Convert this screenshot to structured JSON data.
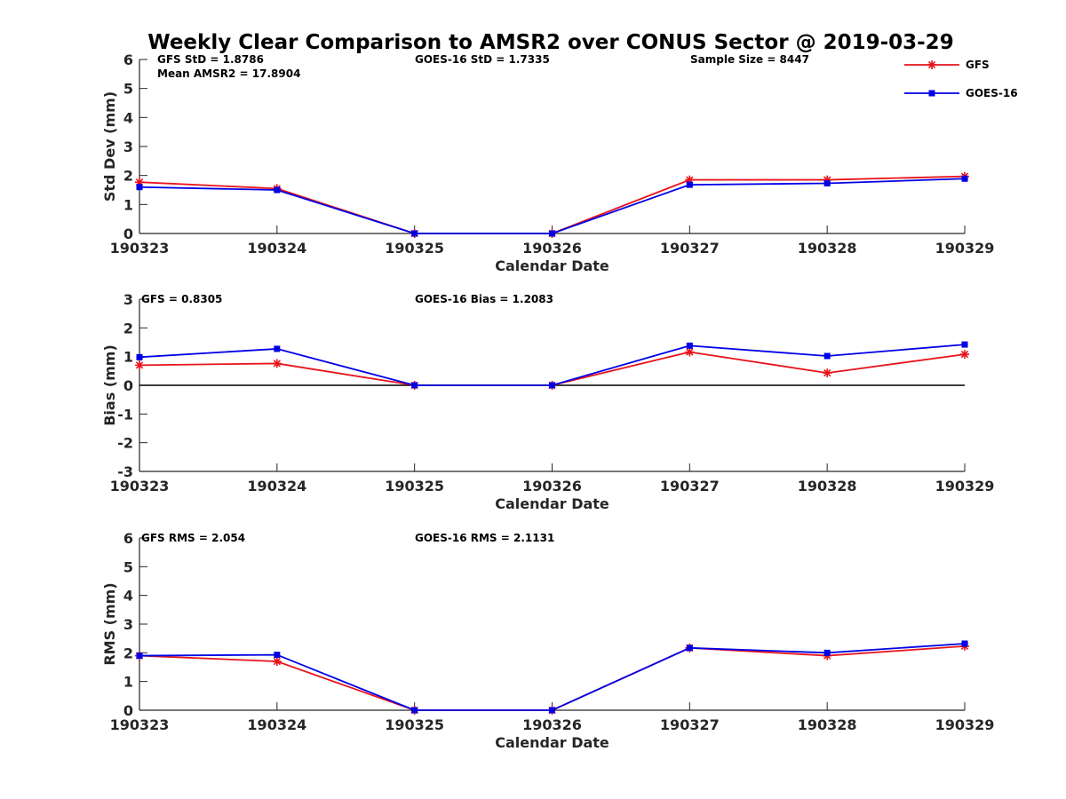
{
  "title": "Weekly Clear Comparison to AMSR2 over CONUS Sector @ 2019-03-29",
  "legend": {
    "items": [
      {
        "label": "GFS",
        "color": "#e8131b",
        "marker": "star"
      },
      {
        "label": "GOES-16",
        "color": "#0000e6",
        "marker": "square"
      }
    ]
  },
  "chart_data": [
    {
      "type": "line",
      "categories": [
        "190323",
        "190324",
        "190325",
        "190326",
        "190327",
        "190328",
        "190329"
      ],
      "xlabel": "Calendar Date",
      "ylabel": "Std Dev (mm)",
      "ylim": [
        0,
        6
      ],
      "yticks": [
        0,
        1,
        2,
        3,
        4,
        5,
        6
      ],
      "zero_line": false,
      "annotations": [
        "GFS StD = 1.8786",
        "Mean AMSR2 = 17.8904",
        "GOES-16 StD = 1.7335",
        "Sample Size = 8447"
      ],
      "series": [
        {
          "name": "GFS",
          "values": [
            1.77,
            1.55,
            0.0,
            0.0,
            1.85,
            1.85,
            1.97
          ]
        },
        {
          "name": "GOES-16",
          "values": [
            1.6,
            1.5,
            0.0,
            0.0,
            1.68,
            1.73,
            1.89
          ]
        }
      ]
    },
    {
      "type": "line",
      "categories": [
        "190323",
        "190324",
        "190325",
        "190326",
        "190327",
        "190328",
        "190329"
      ],
      "xlabel": "Calendar Date",
      "ylabel": "Bias (mm)",
      "ylim": [
        -3,
        3
      ],
      "yticks": [
        -3,
        -2,
        -1,
        0,
        1,
        2,
        3
      ],
      "zero_line": true,
      "annotations": [
        "GFS = 0.8305",
        "GOES-16 Bias  = 1.2083"
      ],
      "series": [
        {
          "name": "GFS",
          "values": [
            0.7,
            0.76,
            0.0,
            0.0,
            1.16,
            0.43,
            1.08
          ]
        },
        {
          "name": "GOES-16",
          "values": [
            0.98,
            1.27,
            0.0,
            0.0,
            1.38,
            1.02,
            1.42
          ]
        }
      ]
    },
    {
      "type": "line",
      "categories": [
        "190323",
        "190324",
        "190325",
        "190326",
        "190327",
        "190328",
        "190329"
      ],
      "xlabel": "Calendar Date",
      "ylabel": "RMS (mm)",
      "ylim": [
        0,
        6
      ],
      "yticks": [
        0,
        1,
        2,
        3,
        4,
        5,
        6
      ],
      "zero_line": false,
      "annotations": [
        "GFS RMS = 2.054",
        "GOES-16 RMS = 2.1131"
      ],
      "series": [
        {
          "name": "GFS",
          "values": [
            1.9,
            1.7,
            0.0,
            0.0,
            2.17,
            1.9,
            2.23
          ]
        },
        {
          "name": "GOES-16",
          "values": [
            1.9,
            1.93,
            0.0,
            0.0,
            2.17,
            2.0,
            2.32
          ]
        }
      ]
    }
  ]
}
